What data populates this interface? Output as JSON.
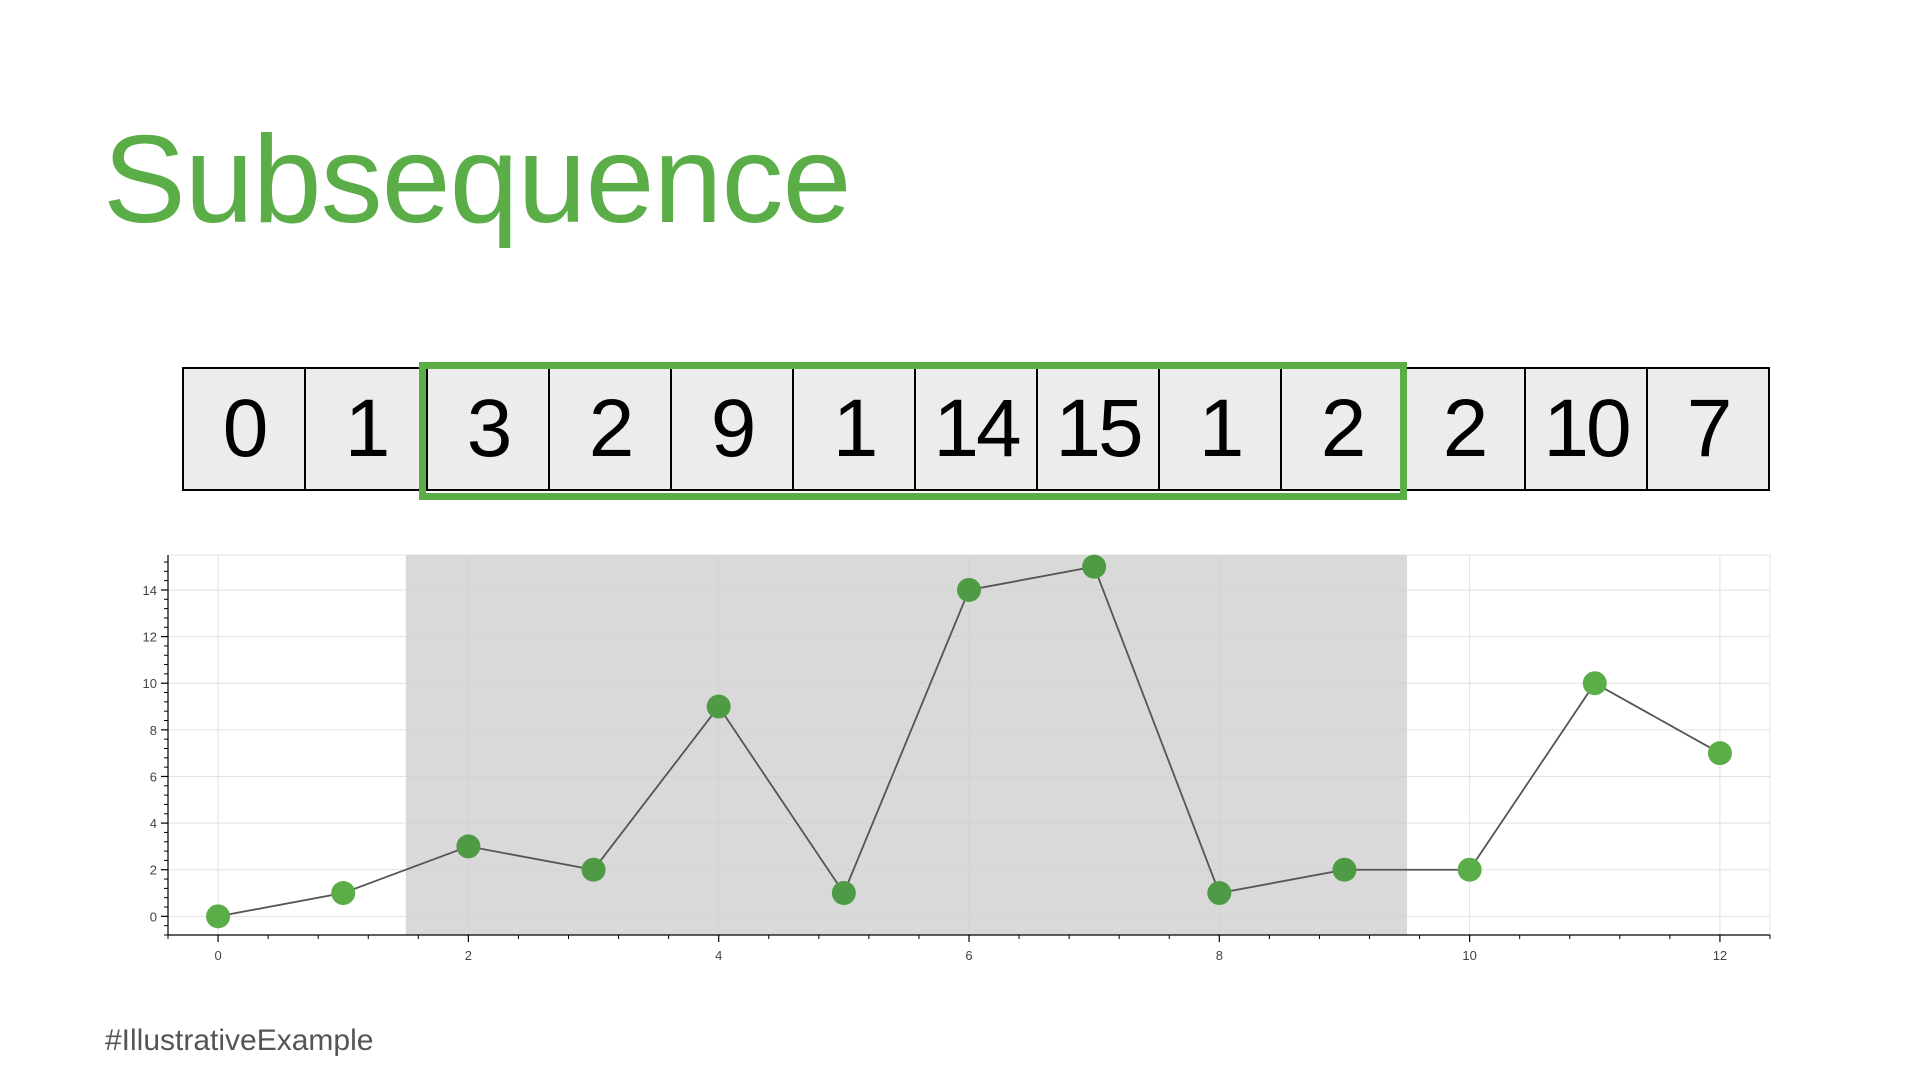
{
  "title": "Subsequence",
  "sequence": {
    "values": [
      "0",
      "1",
      "3",
      "2",
      "9",
      "1",
      "14",
      "15",
      "1",
      "2",
      "2",
      "10",
      "7"
    ],
    "highlight_start_index": 2,
    "highlight_end_index": 9
  },
  "colors": {
    "accent": "#5aad47",
    "marker": "#4f9a44",
    "highlight_band": "#d9d9d9",
    "line": "#555555"
  },
  "chart_data": {
    "type": "line",
    "x": [
      0,
      1,
      2,
      3,
      4,
      5,
      6,
      7,
      8,
      9,
      10,
      11,
      12
    ],
    "y": [
      0,
      1,
      3,
      2,
      9,
      1,
      14,
      15,
      1,
      2,
      2,
      10,
      7
    ],
    "xlim": [
      -0.4,
      12.4
    ],
    "ylim": [
      -0.8,
      15.5
    ],
    "x_ticks": [
      0,
      2,
      4,
      6,
      8,
      10,
      12
    ],
    "y_ticks": [
      0,
      2,
      4,
      6,
      8,
      10,
      12,
      14
    ],
    "highlight_range": [
      1.5,
      9.5
    ],
    "grid": true,
    "markers": true,
    "title": "",
    "xlabel": "",
    "ylabel": ""
  },
  "footer_tag": "#IllustrativeExample"
}
